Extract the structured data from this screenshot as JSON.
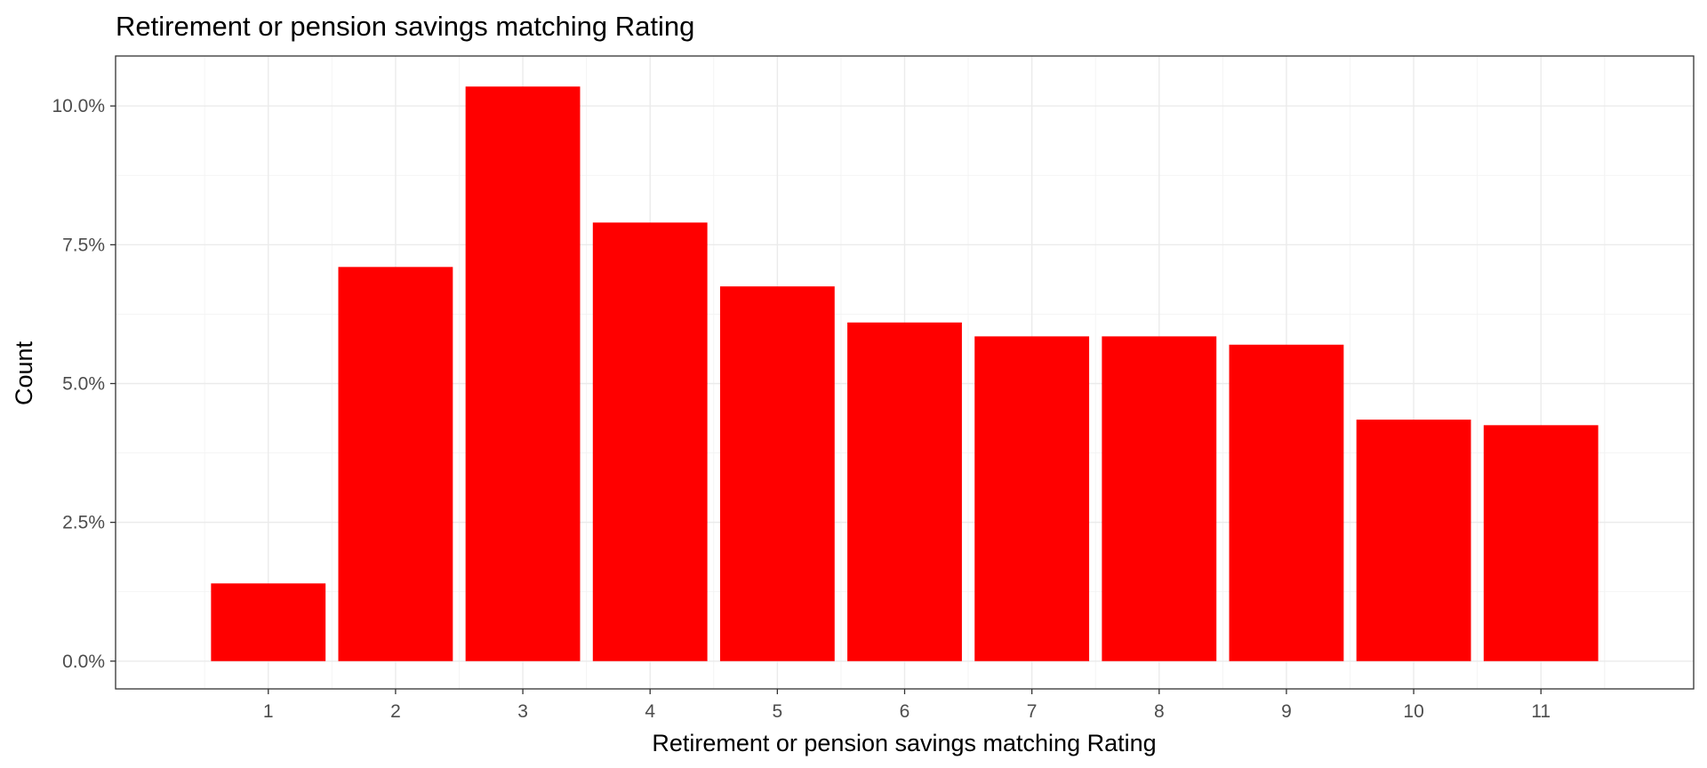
{
  "chart_data": {
    "type": "bar",
    "title": "Retirement or pension savings matching Rating",
    "xlabel": "Retirement or pension savings matching Rating",
    "ylabel": "Count",
    "categories": [
      "1",
      "2",
      "3",
      "4",
      "5",
      "6",
      "7",
      "8",
      "9",
      "10",
      "11"
    ],
    "values": [
      1.4,
      7.1,
      10.35,
      7.9,
      6.75,
      6.1,
      5.85,
      5.85,
      5.7,
      4.35,
      4.25
    ],
    "value_unit": "percent",
    "yticks": [
      "0.0%",
      "2.5%",
      "5.0%",
      "7.5%",
      "10.0%"
    ],
    "ytick_values": [
      0,
      2.5,
      5,
      7.5,
      10
    ],
    "ylim": [
      -0.5,
      10.9
    ],
    "xlim": [
      -0.2,
      12.2
    ],
    "bar_color": "#ff0000",
    "grid": true,
    "legend": "none"
  }
}
